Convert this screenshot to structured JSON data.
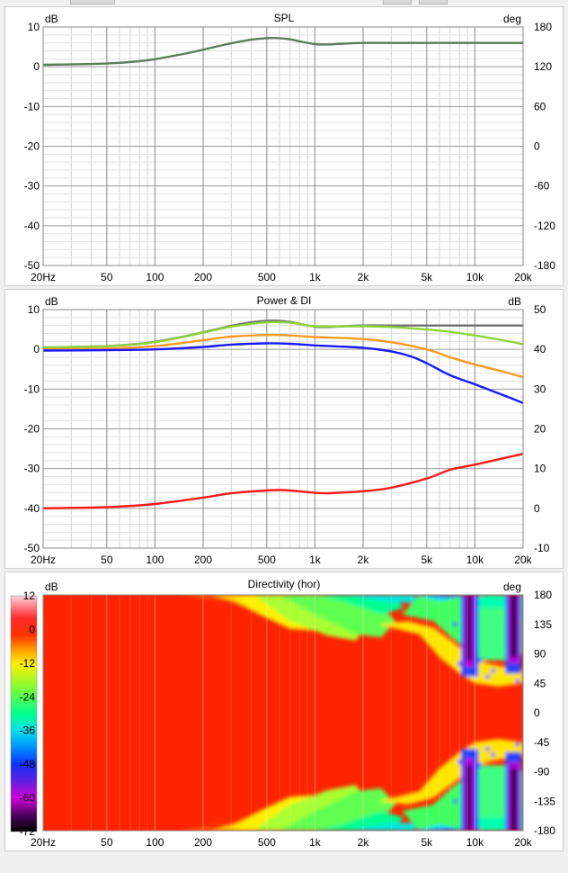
{
  "window": {
    "background": "#f0f0f0"
  },
  "x_axis": {
    "type": "log",
    "range": [
      20,
      20000
    ],
    "major_ticks": [
      20,
      50,
      100,
      200,
      500,
      1000,
      2000,
      5000,
      10000,
      20000
    ],
    "tick_labels": [
      "20Hz",
      "50",
      "100",
      "200",
      "500",
      "1k",
      "2k",
      "5k",
      "10k",
      "20k"
    ]
  },
  "chart_data": [
    {
      "id": "spl",
      "type": "line",
      "title": "SPL",
      "y_unit_left": "dB",
      "y_unit_right": "deg",
      "ylim": [
        -50,
        10
      ],
      "y_ticks": [
        10,
        0,
        -10,
        -20,
        -30,
        -40,
        -50
      ],
      "y_tick_labels": [
        "10",
        "0",
        "-10",
        "-20",
        "-30",
        "-40",
        "-50"
      ],
      "y2lim": [
        -180,
        180
      ],
      "y2_ticks": [
        180,
        120,
        60,
        0,
        -60,
        -120,
        -180
      ],
      "y2_tick_labels": [
        "180",
        "120",
        "60",
        "0",
        "-60",
        "-120",
        "-180"
      ],
      "grid": true,
      "series": [
        {
          "color": "#5a7d5a",
          "x": [
            20,
            40,
            60,
            80,
            100,
            150,
            200,
            300,
            400,
            500,
            600,
            700,
            800,
            1000,
            1200,
            1500,
            2000,
            3000,
            5000,
            10000,
            20000
          ],
          "y": [
            0.5,
            0.7,
            1.0,
            1.4,
            1.9,
            3.2,
            4.3,
            5.9,
            6.8,
            7.2,
            7.2,
            6.9,
            6.4,
            5.7,
            5.6,
            5.8,
            6.0,
            6.0,
            6.0,
            6.0,
            6.0
          ]
        }
      ]
    },
    {
      "id": "power_di",
      "type": "line",
      "title": "Power & DI",
      "y_unit_left": "dB",
      "y_unit_right": "dB",
      "ylim": [
        -50,
        10
      ],
      "y_ticks": [
        10,
        0,
        -10,
        -20,
        -30,
        -40,
        -50
      ],
      "y_tick_labels": [
        "10",
        "0",
        "-10",
        "-20",
        "-30",
        "-40",
        "-50"
      ],
      "y2lim": [
        -10,
        50
      ],
      "y2_ticks": [
        50,
        40,
        30,
        20,
        10,
        0,
        -10
      ],
      "y2_tick_labels": [
        "50",
        "40",
        "30",
        "20",
        "10",
        "0",
        "-10"
      ],
      "grid": true,
      "series": [
        {
          "color": "#707070",
          "x": [
            20,
            40,
            60,
            80,
            100,
            150,
            200,
            300,
            400,
            500,
            600,
            700,
            800,
            1000,
            1200,
            1500,
            2000,
            3000,
            5000,
            10000,
            20000
          ],
          "y": [
            0.5,
            0.7,
            1.0,
            1.4,
            1.9,
            3.2,
            4.3,
            5.9,
            6.8,
            7.2,
            7.2,
            6.9,
            6.4,
            5.7,
            5.6,
            5.8,
            6.0,
            6.0,
            6.0,
            6.0,
            6.0
          ]
        },
        {
          "color": "#8fd23c",
          "x": [
            20,
            50,
            100,
            200,
            300,
            500,
            700,
            1000,
            2000,
            3000,
            5000,
            7000,
            10000,
            15000,
            20000
          ],
          "y": [
            0.5,
            0.8,
            1.8,
            4.2,
            5.7,
            6.8,
            6.7,
            5.8,
            5.8,
            5.6,
            5.0,
            4.4,
            3.5,
            2.3,
            1.3
          ]
        },
        {
          "color": "#ff9a1f",
          "x": [
            20,
            50,
            100,
            200,
            300,
            500,
            700,
            1000,
            2000,
            3000,
            5000,
            7000,
            10000,
            15000,
            20000
          ],
          "y": [
            0.0,
            0.2,
            0.8,
            2.3,
            3.2,
            3.6,
            3.5,
            3.1,
            2.6,
            1.8,
            0.0,
            -2.0,
            -3.8,
            -5.6,
            -7.0
          ]
        },
        {
          "color": "#1a1aff",
          "x": [
            20,
            50,
            100,
            200,
            300,
            500,
            700,
            1000,
            2000,
            3000,
            4000,
            5000,
            7000,
            10000,
            15000,
            20000
          ],
          "y": [
            -0.3,
            -0.2,
            0.0,
            0.6,
            1.2,
            1.5,
            1.4,
            1.0,
            0.4,
            -0.5,
            -1.8,
            -3.5,
            -6.5,
            -8.8,
            -11.5,
            -13.5
          ]
        },
        {
          "color": "#ff1a1a",
          "axis": "right",
          "x": [
            20,
            50,
            100,
            200,
            300,
            500,
            600,
            700,
            1000,
            1200,
            1500,
            2000,
            3000,
            5000,
            7000,
            10000,
            15000,
            20000
          ],
          "y": [
            0.0,
            0.3,
            1.1,
            2.7,
            3.8,
            4.5,
            4.6,
            4.5,
            3.9,
            3.8,
            4.0,
            4.3,
            5.2,
            7.5,
            9.7,
            11.0,
            12.6,
            13.7
          ]
        }
      ]
    },
    {
      "id": "directivity",
      "type": "heatmap",
      "title": "Directivity (hor)",
      "y_unit_left": "dB",
      "y_unit_right": "deg",
      "color_scale_ticks": [
        12,
        0,
        -12,
        -24,
        -36,
        -48,
        -60,
        -72
      ],
      "color_scale_labels": [
        "12",
        "0",
        "-12",
        "-24",
        "-36",
        "-48",
        "-60",
        "-72"
      ],
      "color_stops": [
        [
          "#fad2dc",
          12
        ],
        [
          "#ff2b2b",
          4
        ],
        [
          "#ff3300",
          -2
        ],
        [
          "#ff9900",
          -7
        ],
        [
          "#ffee00",
          -12
        ],
        [
          "#70ff40",
          -22
        ],
        [
          "#00ff90",
          -30
        ],
        [
          "#00e0e8",
          -36
        ],
        [
          "#0090ff",
          -42
        ],
        [
          "#1030ff",
          -48
        ],
        [
          "#6020e0",
          -54
        ],
        [
          "#d000d8",
          -60
        ],
        [
          "#500060",
          -66
        ],
        [
          "#000000",
          -72
        ]
      ],
      "y2lim": [
        -180,
        180
      ],
      "y2_ticks": [
        180,
        135,
        90,
        45,
        0,
        -45,
        -90,
        -135,
        -180
      ],
      "y2_tick_labels": [
        "180",
        "135",
        "90",
        "45",
        "0",
        "-45",
        "-90",
        "-135",
        "-180"
      ]
    }
  ]
}
